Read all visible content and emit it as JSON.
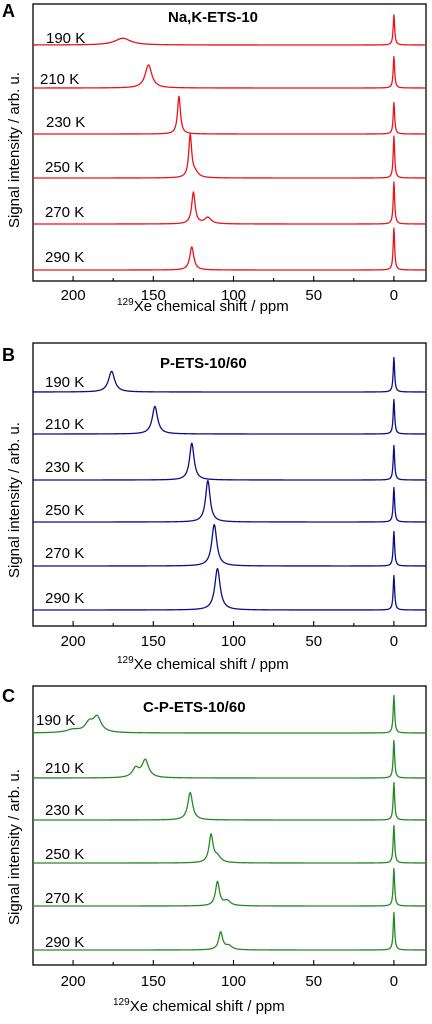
{
  "colors": {
    "A": "#e8141c",
    "B": "#0d0d87",
    "C": "#258a25"
  },
  "chart_data": [
    {
      "type": "line",
      "panel": "A",
      "title": "Na,K-ETS-10",
      "xlabel_sup": "129",
      "xlabel": "Xe chemical shift / ppm",
      "ylabel": "Signal intensity / arb. u.",
      "xlim": [
        225,
        -20
      ],
      "x_ticks": [
        200,
        150,
        100,
        50,
        0
      ],
      "x_tick_labels": [
        "200",
        "150",
        "100",
        "50",
        "0"
      ],
      "series": [
        {
          "name": "190 K",
          "peaks": [
            {
              "shift": 169,
              "height": 0.16,
              "width": 6
            }
          ],
          "reference_height": 0.72
        },
        {
          "name": "210 K",
          "peaks": [
            {
              "shift": 153,
              "height": 0.55,
              "width": 2.5
            }
          ],
          "reference_height": 0.75
        },
        {
          "name": "230 K",
          "peaks": [
            {
              "shift": 134,
              "height": 0.9,
              "width": 1.1
            }
          ],
          "reference_height": 0.75
        },
        {
          "name": "250 K",
          "peaks": [
            {
              "shift": 127,
              "height": 1.0,
              "width": 1.1
            },
            {
              "shift": 124,
              "height": 0.12,
              "width": 2.5
            }
          ],
          "reference_height": 1.0
        },
        {
          "name": "270 K",
          "peaks": [
            {
              "shift": 125,
              "height": 0.75,
              "width": 1.3
            },
            {
              "shift": 116,
              "height": 0.15,
              "width": 2.5
            }
          ],
          "reference_height": 1.0
        },
        {
          "name": "290 K",
          "peaks": [
            {
              "shift": 126,
              "height": 0.55,
              "width": 1.5
            }
          ],
          "reference_height": 1.0
        }
      ]
    },
    {
      "type": "line",
      "panel": "B",
      "title": "P-ETS-10/60",
      "xlabel_sup": "129",
      "xlabel": "Xe chemical shift / ppm",
      "ylabel": "Signal intensity / arb. u.",
      "xlim": [
        225,
        -20
      ],
      "x_ticks": [
        200,
        150,
        100,
        50,
        0
      ],
      "x_tick_labels": [
        "200",
        "150",
        "100",
        "50",
        "0"
      ],
      "series": [
        {
          "name": "190 K",
          "peaks": [
            {
              "shift": 176,
              "height": 0.45,
              "width": 2.3
            }
          ],
          "reference_height": 0.75
        },
        {
          "name": "210 K",
          "peaks": [
            {
              "shift": 149,
              "height": 0.6,
              "width": 2
            }
          ],
          "reference_height": 0.75
        },
        {
          "name": "230 K",
          "peaks": [
            {
              "shift": 126,
              "height": 0.8,
              "width": 1.7
            }
          ],
          "reference_height": 0.75
        },
        {
          "name": "250 K",
          "peaks": [
            {
              "shift": 116,
              "height": 0.9,
              "width": 1.7
            }
          ],
          "reference_height": 0.75
        },
        {
          "name": "270 K",
          "peaks": [
            {
              "shift": 112,
              "height": 0.9,
              "width": 1.9
            }
          ],
          "reference_height": 0.75
        },
        {
          "name": "290 K",
          "peaks": [
            {
              "shift": 110,
              "height": 0.9,
              "width": 2
            }
          ],
          "reference_height": 0.75
        }
      ]
    },
    {
      "type": "line",
      "panel": "C",
      "title": "C-P-ETS-10/60",
      "xlabel_sup": "129",
      "xlabel": "Xe chemical shift / ppm",
      "ylabel": "Signal intensity / arb. u.",
      "xlim": [
        225,
        -20
      ],
      "x_ticks": [
        200,
        150,
        100,
        50,
        0
      ],
      "x_tick_labels": [
        "200",
        "150",
        "100",
        "50",
        "0"
      ],
      "series": [
        {
          "name": "190 K",
          "peaks": [
            {
              "shift": 185,
              "height": 0.3,
              "width": 3
            },
            {
              "shift": 190,
              "height": 0.18,
              "width": 3
            },
            {
              "shift": 200,
              "height": 0.06,
              "width": 5
            }
          ],
          "reference_height": 0.75
        },
        {
          "name": "210 K",
          "peaks": [
            {
              "shift": 155,
              "height": 0.35,
              "width": 2.5
            },
            {
              "shift": 161,
              "height": 0.18,
              "width": 2.5
            }
          ],
          "reference_height": 0.75
        },
        {
          "name": "230 K",
          "peaks": [
            {
              "shift": 127,
              "height": 0.55,
              "width": 1.8
            }
          ],
          "reference_height": 0.75
        },
        {
          "name": "250 K",
          "peaks": [
            {
              "shift": 114,
              "height": 0.55,
              "width": 1.5
            },
            {
              "shift": 110,
              "height": 0.12,
              "width": 2.5
            }
          ],
          "reference_height": 0.75
        },
        {
          "name": "270 K",
          "peaks": [
            {
              "shift": 110,
              "height": 0.48,
              "width": 1.5
            },
            {
              "shift": 104,
              "height": 0.1,
              "width": 2.5
            }
          ],
          "reference_height": 0.75
        },
        {
          "name": "290 K",
          "peaks": [
            {
              "shift": 108,
              "height": 0.35,
              "width": 1.5
            },
            {
              "shift": 103,
              "height": 0.08,
              "width": 2.5
            }
          ],
          "reference_height": 0.75
        }
      ]
    }
  ]
}
